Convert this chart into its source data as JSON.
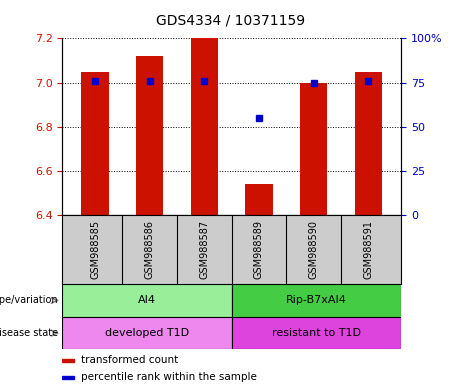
{
  "title": "GDS4334 / 10371159",
  "samples": [
    "GSM988585",
    "GSM988586",
    "GSM988587",
    "GSM988589",
    "GSM988590",
    "GSM988591"
  ],
  "bar_values": [
    7.05,
    7.12,
    7.2,
    6.54,
    7.0,
    7.05
  ],
  "percentile_values": [
    76,
    76,
    76,
    55,
    75,
    76
  ],
  "ylim_left": [
    6.4,
    7.2
  ],
  "ylim_right": [
    0,
    100
  ],
  "bar_color": "#cc1100",
  "percentile_color": "#0000cc",
  "yticks_left": [
    6.4,
    6.6,
    6.8,
    7.0,
    7.2
  ],
  "yticks_right": [
    0,
    25,
    50,
    75,
    100
  ],
  "ytick_labels_right": [
    "0",
    "25",
    "50",
    "75",
    "100%"
  ],
  "groups": [
    {
      "label": "AI4",
      "start": 0,
      "end": 3,
      "color": "#99ee99"
    },
    {
      "label": "Rip-B7xAI4",
      "start": 3,
      "end": 6,
      "color": "#44cc44"
    }
  ],
  "disease_groups": [
    {
      "label": "developed T1D",
      "start": 0,
      "end": 3,
      "color": "#ee88ee"
    },
    {
      "label": "resistant to T1D",
      "start": 3,
      "end": 6,
      "color": "#dd44dd"
    }
  ],
  "genotype_label": "genotype/variation",
  "disease_label": "disease state",
  "legend_items": [
    {
      "color": "#cc1100",
      "label": "transformed count"
    },
    {
      "color": "#0000cc",
      "label": "percentile rank within the sample"
    }
  ],
  "xtick_bg_color": "#cccccc",
  "grid_color": "#000000",
  "bar_width": 0.5,
  "title_fontsize": 10,
  "label_fontsize": 7,
  "tick_fontsize": 8,
  "annotation_fontsize": 8,
  "legend_fontsize": 7.5
}
